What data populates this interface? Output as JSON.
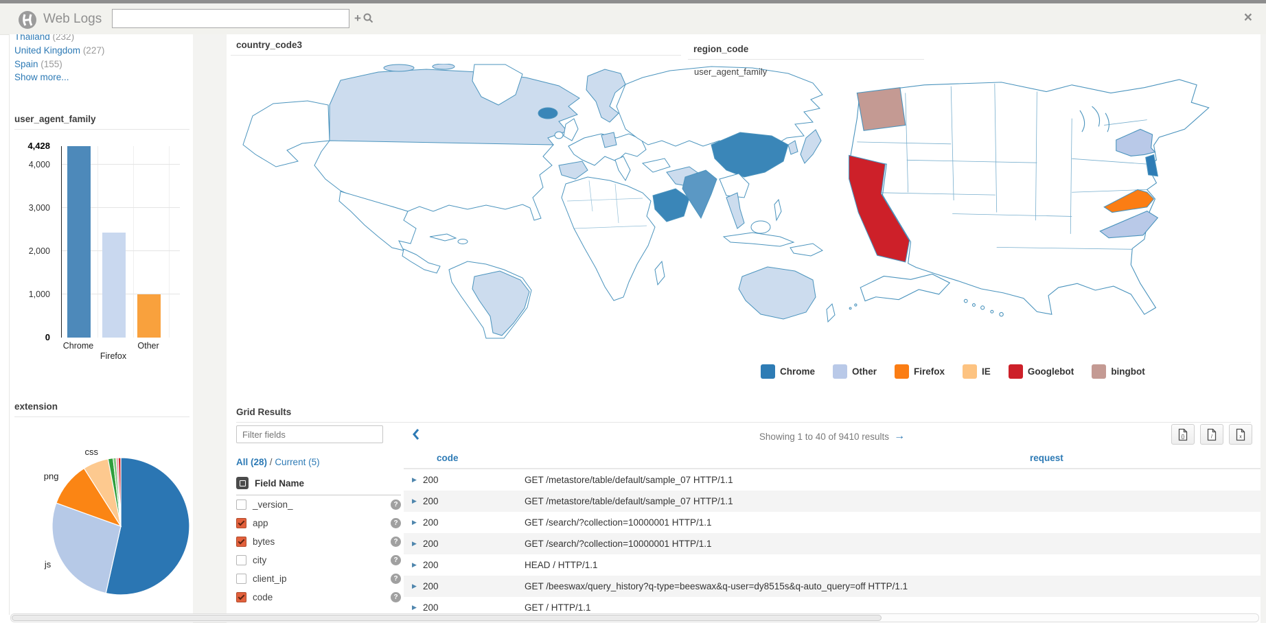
{
  "topbar": {
    "app_title": "Web Logs",
    "search_value": "",
    "search_placeholder": ""
  },
  "icons": {
    "close": "×",
    "search_plus": "+",
    "arrow_right": "→",
    "row_expand": "▶",
    "help": "?"
  },
  "sidebar": {
    "facets": [
      {
        "label": "Thailand",
        "count": "(232)"
      },
      {
        "label": "United Kingdom",
        "count": "(227)"
      },
      {
        "label": "Spain",
        "count": "(155)"
      }
    ],
    "show_more_label": "Show more...",
    "bar_section_title": "user_agent_family",
    "pie_section_title": "extension"
  },
  "maps": {
    "world_title": "country_code3",
    "us_title": "region_code",
    "us_subtitle": "user_agent_family"
  },
  "chart_data": [
    {
      "type": "bar",
      "title": "user_agent_family",
      "categories": [
        "Chrome",
        "Firefox",
        "Other"
      ],
      "values": [
        4428,
        2430,
        1000
      ],
      "colors": [
        "#4d89ba",
        "#c9d8ef",
        "#f9a13d"
      ],
      "ylim": [
        0,
        4428
      ],
      "yticks": [
        {
          "v": 0,
          "label": "0",
          "bold": true
        },
        {
          "v": 1000,
          "label": "1,000"
        },
        {
          "v": 2000,
          "label": "2,000"
        },
        {
          "v": 3000,
          "label": "3,000"
        },
        {
          "v": 4000,
          "label": "4,000"
        },
        {
          "v": 4428,
          "label": "4,428",
          "bold": true
        }
      ]
    },
    {
      "type": "pie",
      "title": "extension",
      "slices": [
        {
          "label": "",
          "value": 53.5,
          "color": "#2b76b3"
        },
        {
          "label": "js",
          "value": 27,
          "color": "#b6c9e7"
        },
        {
          "label": "png",
          "value": 10.5,
          "color": "#fb8514"
        },
        {
          "label": "css",
          "value": 6,
          "color": "#fdc98f"
        },
        {
          "label": "",
          "value": 1.2,
          "color": "#2f9e3c"
        },
        {
          "label": "",
          "value": 0.7,
          "color": "#7dc87d"
        },
        {
          "label": "",
          "value": 0.5,
          "color": "#e8909c"
        },
        {
          "label": "",
          "value": 0.6,
          "color": "#d0262c"
        }
      ]
    },
    {
      "type": "choropleth",
      "title": "country_code3",
      "palette": {
        "high": "#3a86b8",
        "mid": "#5b98c4",
        "low": "#ccdcee",
        "none": "#ffffff"
      },
      "countries": {
        "China": "high",
        "Saudi Arabia": "high",
        "Iceland": "high",
        "India": "mid",
        "Canada": "low",
        "Brazil": "low",
        "Spain": "low",
        "Scandinavia": "low",
        "Germany": "low",
        "Iran": "low",
        "Thailand": "low",
        "Japan": "low",
        "South Korea": "low",
        "Australia": "low"
      }
    },
    {
      "type": "choropleth",
      "title": "region_code",
      "subtitle": "user_agent_family",
      "states": {
        "WA": "bingbot",
        "CA": "Googlebot",
        "NY": "Other",
        "NJ": "Chrome",
        "VA": "Firefox",
        "NC": "Other"
      },
      "legend": [
        {
          "label": "Chrome",
          "color": "#2e7cb5"
        },
        {
          "label": "Other",
          "color": "#b9c9e8"
        },
        {
          "label": "Firefox",
          "color": "#fb7d14"
        },
        {
          "label": "IE",
          "color": "#fdc381"
        },
        {
          "label": "Googlebot",
          "color": "#cd2029"
        },
        {
          "label": "bingbot",
          "color": "#c49a93"
        }
      ]
    }
  ],
  "grid": {
    "title": "Grid Results",
    "filter_placeholder": "Filter fields",
    "links": {
      "all": "All (28)",
      "separator": "/",
      "current": "Current (5)"
    },
    "field_header": "Field Name",
    "fields": [
      {
        "name": "_version_",
        "checked": false
      },
      {
        "name": "app",
        "checked": true
      },
      {
        "name": "bytes",
        "checked": true
      },
      {
        "name": "city",
        "checked": false
      },
      {
        "name": "client_ip",
        "checked": false
      },
      {
        "name": "code",
        "checked": true
      }
    ],
    "showing": "Showing 1 to 40 of 9410 results",
    "columns": [
      "code",
      "request"
    ],
    "rows": [
      [
        "200",
        "GET /metastore/table/default/sample_07 HTTP/1.1"
      ],
      [
        "200",
        "GET /metastore/table/default/sample_07 HTTP/1.1"
      ],
      [
        "200",
        "GET /search/?collection=10000001 HTTP/1.1"
      ],
      [
        "200",
        "GET /search/?collection=10000001 HTTP/1.1"
      ],
      [
        "200",
        "HEAD / HTTP/1.1"
      ],
      [
        "200",
        "GET /beeswax/query_history?q-type=beeswax&q-user=dy8515s&q-auto_query=off HTTP/1.1"
      ],
      [
        "200",
        "GET / HTTP/1.1"
      ]
    ],
    "downloads": [
      {
        "name": "download-json-icon",
        "glyph": "{}"
      },
      {
        "name": "download-csv-icon",
        "glyph": "/"
      },
      {
        "name": "download-xls-icon",
        "glyph": "x"
      }
    ]
  }
}
